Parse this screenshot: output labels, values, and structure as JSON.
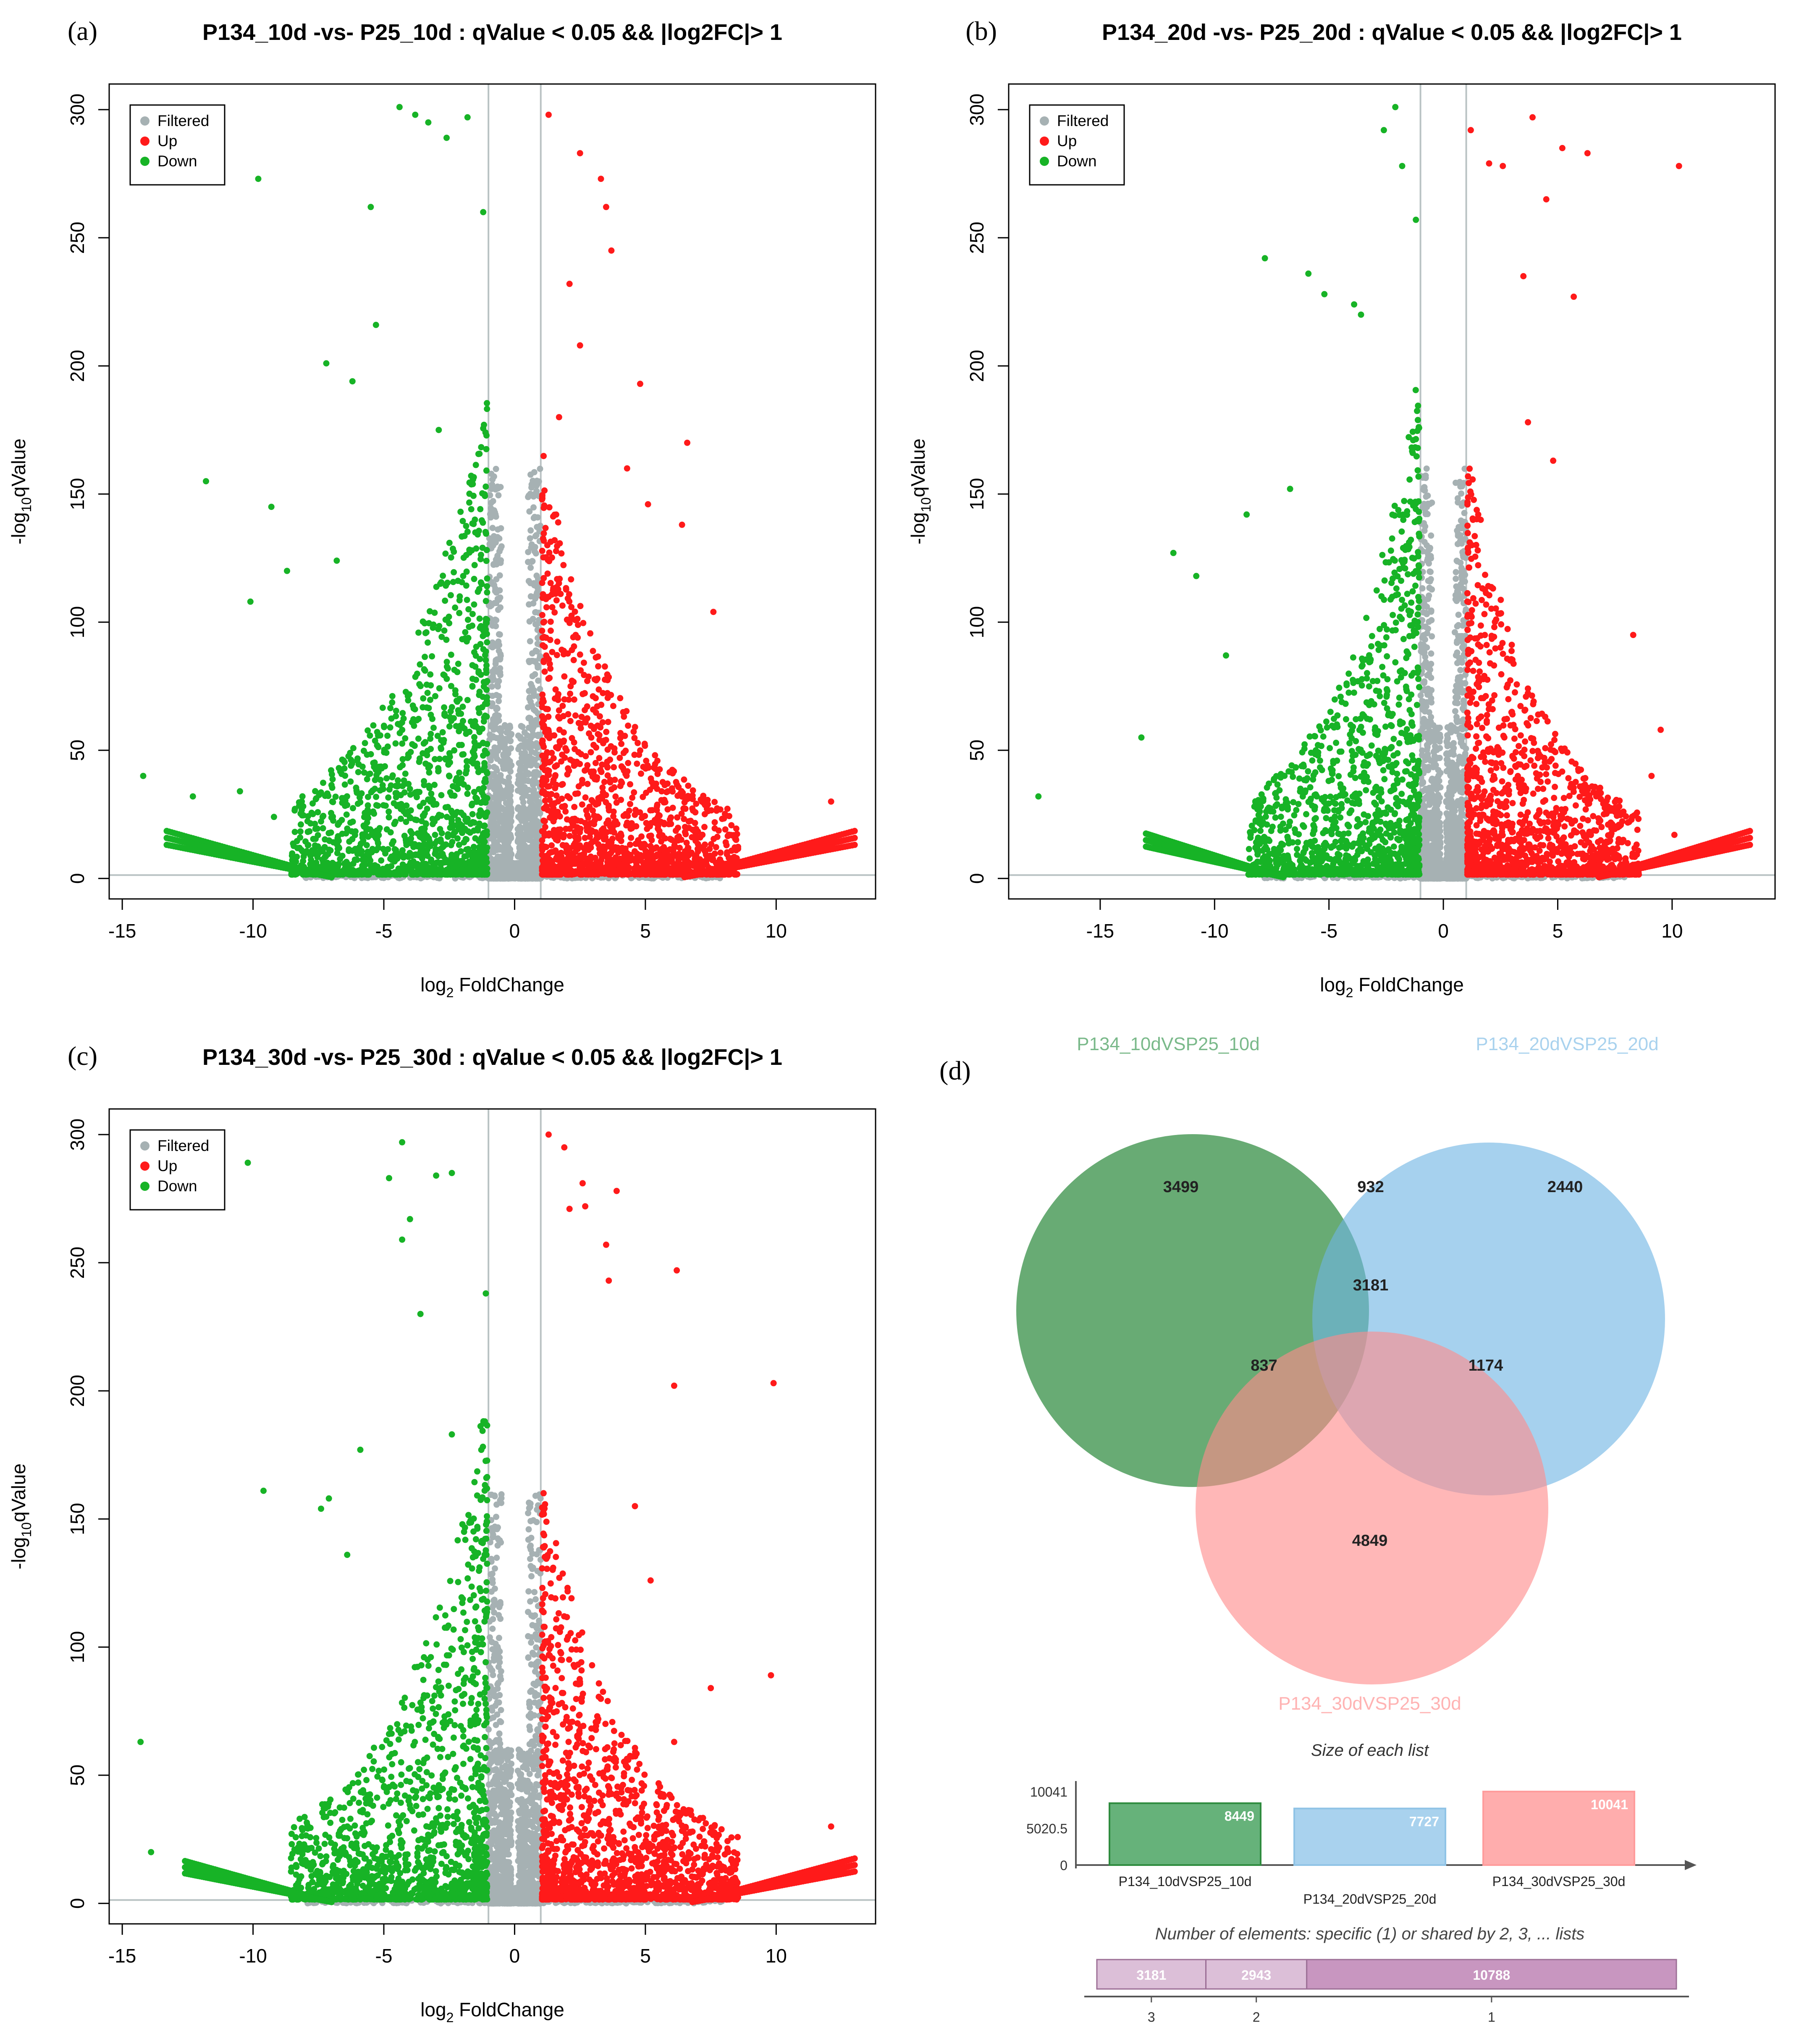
{
  "colors": {
    "filtered": "#a6b1b3",
    "up": "#ff1a1a",
    "down": "#17b326",
    "grid": "#b9c2c3",
    "venn_a": "#2e8b3e",
    "venn_b": "#6fb4e3",
    "venn_c": "#ff8a8a",
    "bar_a": "#66b27a",
    "bar_b": "#a9d2ee",
    "bar_c": "#ffadad",
    "shared_bar": "#c896c0",
    "shared_bar_light": "#dcbfd8"
  },
  "chart_data": [
    {
      "type": "scatter",
      "panel_label": "(a)",
      "title": "P134_10d -vs- P25_10d : qValue < 0.05 && |log2FC|> 1",
      "xlabel_main": "log",
      "xlabel_sub": "2",
      "xlabel_rest": " FoldChange",
      "ylabel_main": "-log",
      "ylabel_sub": "10",
      "ylabel_rest": "qValue",
      "xlim": [
        -15.5,
        13.8
      ],
      "ylim": [
        -8,
        310
      ],
      "xticks": [
        -15,
        -10,
        -5,
        0,
        5,
        10
      ],
      "yticks": [
        0,
        50,
        100,
        150,
        200,
        250,
        300
      ],
      "legend": [
        "Filtered",
        "Up",
        "Down"
      ],
      "vlines": [
        -1,
        1
      ],
      "hline": 1.3,
      "seed": 11,
      "down_points": [
        [
          -14.2,
          40
        ],
        [
          -12.3,
          32
        ],
        [
          -11.8,
          155
        ],
        [
          -10.5,
          34
        ],
        [
          -9.8,
          273
        ],
        [
          -9.3,
          145
        ],
        [
          -9.2,
          24
        ],
        [
          -8.7,
          120
        ],
        [
          -10.1,
          108
        ],
        [
          -7.2,
          201
        ],
        [
          -6.8,
          124
        ],
        [
          -6.2,
          194
        ],
        [
          -5.5,
          262
        ],
        [
          -5.3,
          216
        ],
        [
          -4.4,
          301
        ],
        [
          -3.8,
          298
        ],
        [
          -3.3,
          295
        ],
        [
          -2.6,
          289
        ],
        [
          -1.8,
          297
        ],
        [
          -1.2,
          260
        ],
        [
          -2.9,
          175
        ]
      ],
      "up_points": [
        [
          1.3,
          298
        ],
        [
          2.5,
          283
        ],
        [
          3.3,
          273
        ],
        [
          3.5,
          262
        ],
        [
          3.7,
          245
        ],
        [
          2.1,
          232
        ],
        [
          2.5,
          208
        ],
        [
          4.8,
          193
        ],
        [
          6.6,
          170
        ],
        [
          4.3,
          160
        ],
        [
          5.1,
          146
        ],
        [
          6.4,
          138
        ],
        [
          7.6,
          104
        ],
        [
          12.1,
          30
        ],
        [
          1.7,
          180
        ]
      ],
      "tail_down": [
        -13.3,
        18,
        -7.0,
        0
      ],
      "tail_up": [
        6.5,
        0,
        13.0,
        18
      ],
      "count_core_f": 1900,
      "count_down": 1500,
      "count_up": 1500
    },
    {
      "type": "scatter",
      "panel_label": "(b)",
      "title": "P134_20d -vs- P25_20d : qValue < 0.05 && |log2FC|> 1",
      "xlabel_main": "log",
      "xlabel_sub": "2",
      "xlabel_rest": " FoldChange",
      "ylabel_main": "-log",
      "ylabel_sub": "10",
      "ylabel_rest": "qValue",
      "xlim": [
        -19,
        14.5
      ],
      "ylim": [
        -8,
        310
      ],
      "xticks": [
        -15,
        -10,
        -5,
        0,
        5,
        10
      ],
      "yticks": [
        0,
        50,
        100,
        150,
        200,
        250,
        300
      ],
      "legend": [
        "Filtered",
        "Up",
        "Down"
      ],
      "vlines": [
        -1,
        1
      ],
      "hline": 1.3,
      "seed": 23,
      "down_points": [
        [
          -17.7,
          32
        ],
        [
          -13.2,
          55
        ],
        [
          -11.8,
          127
        ],
        [
          -10.8,
          118
        ],
        [
          -9.5,
          87
        ],
        [
          -8.6,
          142
        ],
        [
          -7.8,
          242
        ],
        [
          -6.7,
          152
        ],
        [
          -5.9,
          236
        ],
        [
          -5.2,
          228
        ],
        [
          -3.9,
          224
        ],
        [
          -3.6,
          220
        ],
        [
          -2.6,
          292
        ],
        [
          -2.1,
          301
        ],
        [
          -1.8,
          278
        ],
        [
          -1.2,
          257
        ]
      ],
      "up_points": [
        [
          1.2,
          292
        ],
        [
          2.0,
          279
        ],
        [
          2.6,
          278
        ],
        [
          3.9,
          297
        ],
        [
          4.5,
          265
        ],
        [
          5.2,
          285
        ],
        [
          6.3,
          283
        ],
        [
          10.3,
          278
        ],
        [
          3.5,
          235
        ],
        [
          5.7,
          227
        ],
        [
          3.7,
          178
        ],
        [
          4.8,
          163
        ],
        [
          8.3,
          95
        ],
        [
          9.5,
          58
        ],
        [
          9.1,
          40
        ],
        [
          10.1,
          17
        ]
      ],
      "tail_down": [
        -13.0,
        17,
        -7.0,
        0
      ],
      "tail_up": [
        6.8,
        0,
        13.4,
        18
      ],
      "count_core_f": 1900,
      "count_down": 1400,
      "count_up": 1400
    },
    {
      "type": "scatter",
      "panel_label": "(c)",
      "title": "P134_30d -vs- P25_30d : qValue < 0.05 && |log2FC|> 1",
      "xlabel_main": "log",
      "xlabel_sub": "2",
      "xlabel_rest": " FoldChange",
      "ylabel_main": "-log",
      "ylabel_sub": "10",
      "ylabel_rest": "qValue",
      "xlim": [
        -15.5,
        13.8
      ],
      "ylim": [
        -8,
        310
      ],
      "xticks": [
        -15,
        -10,
        -5,
        0,
        5,
        10
      ],
      "yticks": [
        0,
        50,
        100,
        150,
        200,
        250,
        300
      ],
      "legend": [
        "Filtered",
        "Up",
        "Down"
      ],
      "vlines": [
        -1,
        1
      ],
      "hline": 1.3,
      "seed": 37,
      "down_points": [
        [
          -14.3,
          63
        ],
        [
          -13.9,
          20
        ],
        [
          -10.2,
          289
        ],
        [
          -9.6,
          161
        ],
        [
          -7.4,
          154
        ],
        [
          -7.1,
          158
        ],
        [
          -6.4,
          136
        ],
        [
          -4.8,
          283
        ],
        [
          -4.3,
          297
        ],
        [
          -4.3,
          259
        ],
        [
          -4.0,
          267
        ],
        [
          -3.0,
          284
        ],
        [
          -2.4,
          285
        ],
        [
          -3.6,
          230
        ],
        [
          -2.4,
          183
        ],
        [
          -1.1,
          238
        ],
        [
          -5.9,
          177
        ]
      ],
      "up_points": [
        [
          1.3,
          300
        ],
        [
          1.9,
          295
        ],
        [
          2.6,
          281
        ],
        [
          2.1,
          271
        ],
        [
          2.7,
          272
        ],
        [
          3.5,
          257
        ],
        [
          3.9,
          278
        ],
        [
          3.6,
          243
        ],
        [
          6.2,
          247
        ],
        [
          6.1,
          202
        ],
        [
          9.9,
          203
        ],
        [
          4.6,
          155
        ],
        [
          5.2,
          126
        ],
        [
          7.5,
          84
        ],
        [
          9.8,
          89
        ],
        [
          12.1,
          30
        ],
        [
          6.1,
          63
        ]
      ],
      "tail_down": [
        -12.6,
        16,
        -7.0,
        0
      ],
      "tail_up": [
        6.8,
        0,
        13.0,
        17
      ],
      "count_core_f": 1900,
      "count_down": 1400,
      "count_up": 1500
    },
    {
      "type": "venn",
      "panel_label": "(d)",
      "sets": [
        "P134_10dVSP25_10d",
        "P134_20dVSP25_20d",
        "P134_30dVSP25_30d"
      ],
      "regions": {
        "a_only": "3499",
        "ab": "932",
        "b_only": "2440",
        "abc": "3181",
        "ac": "837",
        "bc": "1174",
        "c_only": "4849"
      }
    },
    {
      "type": "bar",
      "title": "Size of each list",
      "categories": [
        "P134_10dVSP25_10d",
        "P134_20dVSP25_20d",
        "P134_30dVSP25_30d"
      ],
      "values": [
        8449,
        7727,
        10041
      ],
      "value_labels": [
        "8449",
        "7727",
        "10041"
      ],
      "yticks": [
        "10041",
        "5020.5",
        "0"
      ],
      "ylim": [
        0,
        10041
      ]
    },
    {
      "type": "bar",
      "orientation": "horizontal-stacked",
      "title": "Number of elements: specific (1) or shared by 2, 3, ... lists",
      "categories": [
        "3",
        "2",
        "1"
      ],
      "values": [
        3181,
        2943,
        10788
      ],
      "value_labels": [
        "3181",
        "2943",
        "10788"
      ]
    }
  ]
}
